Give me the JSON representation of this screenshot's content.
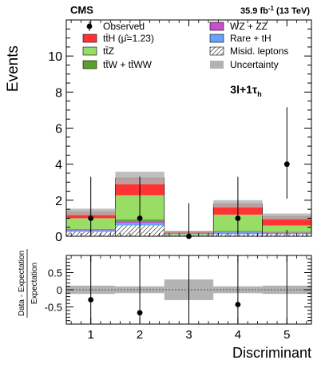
{
  "chart_data": [
    {
      "type": "bar",
      "stacked": true,
      "experiment": "CMS",
      "lumi_label": "35.9 fb",
      "lumi_exponent": "-1",
      "energy_label": " (13 TeV)",
      "category_label": "3l+1τ",
      "category_sub": "h",
      "ylabel": "Events",
      "ylim": [
        0,
        12
      ],
      "yticks": [
        0,
        2,
        4,
        6,
        8,
        10
      ],
      "categories": [
        "1",
        "2",
        "3",
        "4",
        "5"
      ],
      "series": [
        {
          "name": "Misid. leptons",
          "color": "#ffffff",
          "hatch": true,
          "values": [
            0.25,
            0.6,
            0.05,
            0.12,
            0.12
          ]
        },
        {
          "name": "Rare + tH",
          "color": "#66a3ff",
          "values": [
            0.08,
            0.15,
            0.03,
            0.1,
            0.06
          ]
        },
        {
          "name": "WZ + ZZ",
          "color": "#c94fcf",
          "values": [
            0.04,
            0.1,
            0.01,
            0.03,
            0.03
          ]
        },
        {
          "name": "tt̄W + tt̄WW",
          "color": "#5aa02c",
          "values": [
            0.03,
            0.08,
            0.01,
            0.05,
            0.04
          ]
        },
        {
          "name": "tt̄Z",
          "color": "#99dd66",
          "values": [
            0.6,
            1.35,
            0.05,
            0.9,
            0.35
          ]
        },
        {
          "name": "tt̄H (μ̂=1.23)",
          "color": "#ff3333",
          "values": [
            0.35,
            0.95,
            0.1,
            0.6,
            0.5
          ]
        }
      ],
      "uncertainty": {
        "name": "Uncertainty",
        "color": "#b3b3b3",
        "half_width": [
          0.18,
          0.35,
          0.06,
          0.2,
          0.16
        ]
      },
      "observed": {
        "name": "Observed",
        "values": [
          1,
          1,
          0,
          1,
          4
        ],
        "err_up": [
          2.3,
          2.3,
          1.84,
          2.3,
          3.16
        ],
        "err_down": [
          0.83,
          0.83,
          0,
          0.83,
          1.91
        ]
      },
      "legend_placement": "top"
    },
    {
      "type": "scatter",
      "xlabel": "Discriminant",
      "ylabel_num": "Data - Expectation",
      "ylabel_den": "Expectation",
      "xlim": [
        0.5,
        5.5
      ],
      "ylim": [
        -1,
        1
      ],
      "yticks": [
        -0.5,
        0,
        0.5
      ],
      "xticks": [
        1,
        2,
        3,
        4,
        5
      ],
      "x": [
        1,
        2,
        3,
        4,
        5
      ],
      "values": [
        -0.29,
        -0.67,
        null,
        -0.43,
        null
      ],
      "band": [
        0.12,
        0.1,
        0.3,
        0.1,
        0.12
      ]
    }
  ],
  "colors": {
    "band": "#b3b3b3"
  }
}
